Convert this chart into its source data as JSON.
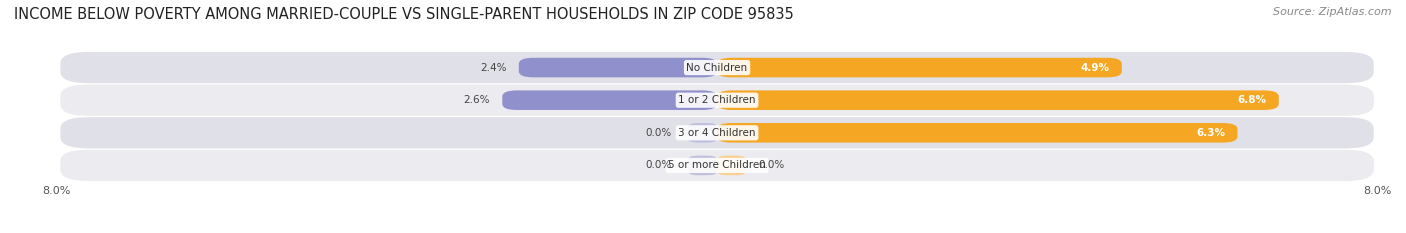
{
  "title": "INCOME BELOW POVERTY AMONG MARRIED-COUPLE VS SINGLE-PARENT HOUSEHOLDS IN ZIP CODE 95835",
  "source": "Source: ZipAtlas.com",
  "categories": [
    "No Children",
    "1 or 2 Children",
    "3 or 4 Children",
    "5 or more Children"
  ],
  "married_values": [
    2.4,
    2.6,
    0.0,
    0.0
  ],
  "single_values": [
    4.9,
    6.8,
    6.3,
    0.0
  ],
  "married_color": "#9090cc",
  "single_color": "#f5a623",
  "married_color_light": "#c0c0de",
  "single_color_light": "#fad090",
  "row_bg_colors": [
    "#ebebf0",
    "#e0e0e8",
    "#ebebf0",
    "#e0e0e8"
  ],
  "xlim_left": -8.0,
  "xlim_right": 8.0,
  "title_fontsize": 10.5,
  "source_fontsize": 8,
  "label_fontsize": 7.5,
  "tick_fontsize": 8,
  "legend_fontsize": 8,
  "background_color": "#ffffff"
}
